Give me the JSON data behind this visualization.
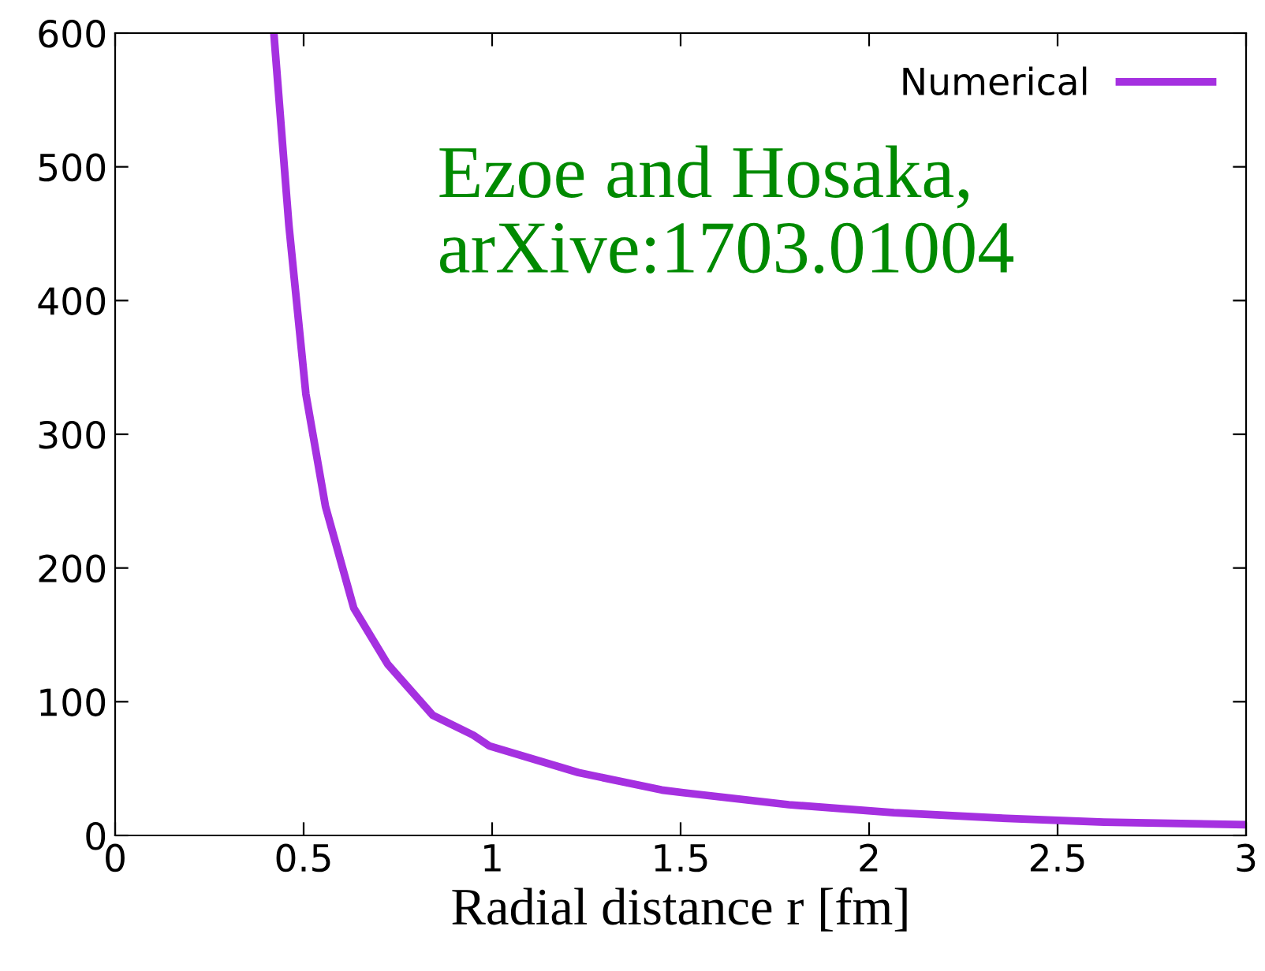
{
  "chart_data": {
    "type": "line",
    "xlabel": "Radial distance r [fm]",
    "xlim": [
      0,
      3
    ],
    "ylim": [
      0,
      600
    ],
    "xticks": [
      0,
      0.5,
      1,
      1.5,
      2,
      2.5,
      3
    ],
    "yticks": [
      0,
      100,
      200,
      300,
      400,
      500,
      600
    ],
    "grid": false,
    "legend": "top right",
    "marker": "none",
    "line_style": "solid",
    "annotations": [
      "Ezoe and Hosaka,\narXive:1703.01004"
    ],
    "series": [
      {
        "name": "Numerical",
        "color": "#a530e0",
        "x": [
          0.421,
          0.461,
          0.506,
          0.558,
          0.633,
          0.723,
          0.842,
          0.95,
          0.992,
          1.229,
          1.45,
          1.507,
          1.787,
          2.066,
          2.344,
          2.623,
          3.0
        ],
        "values": [
          600,
          456,
          330,
          246,
          170,
          128,
          90,
          75,
          67,
          47,
          34,
          32,
          23,
          17,
          13,
          10,
          8
        ]
      }
    ]
  }
}
